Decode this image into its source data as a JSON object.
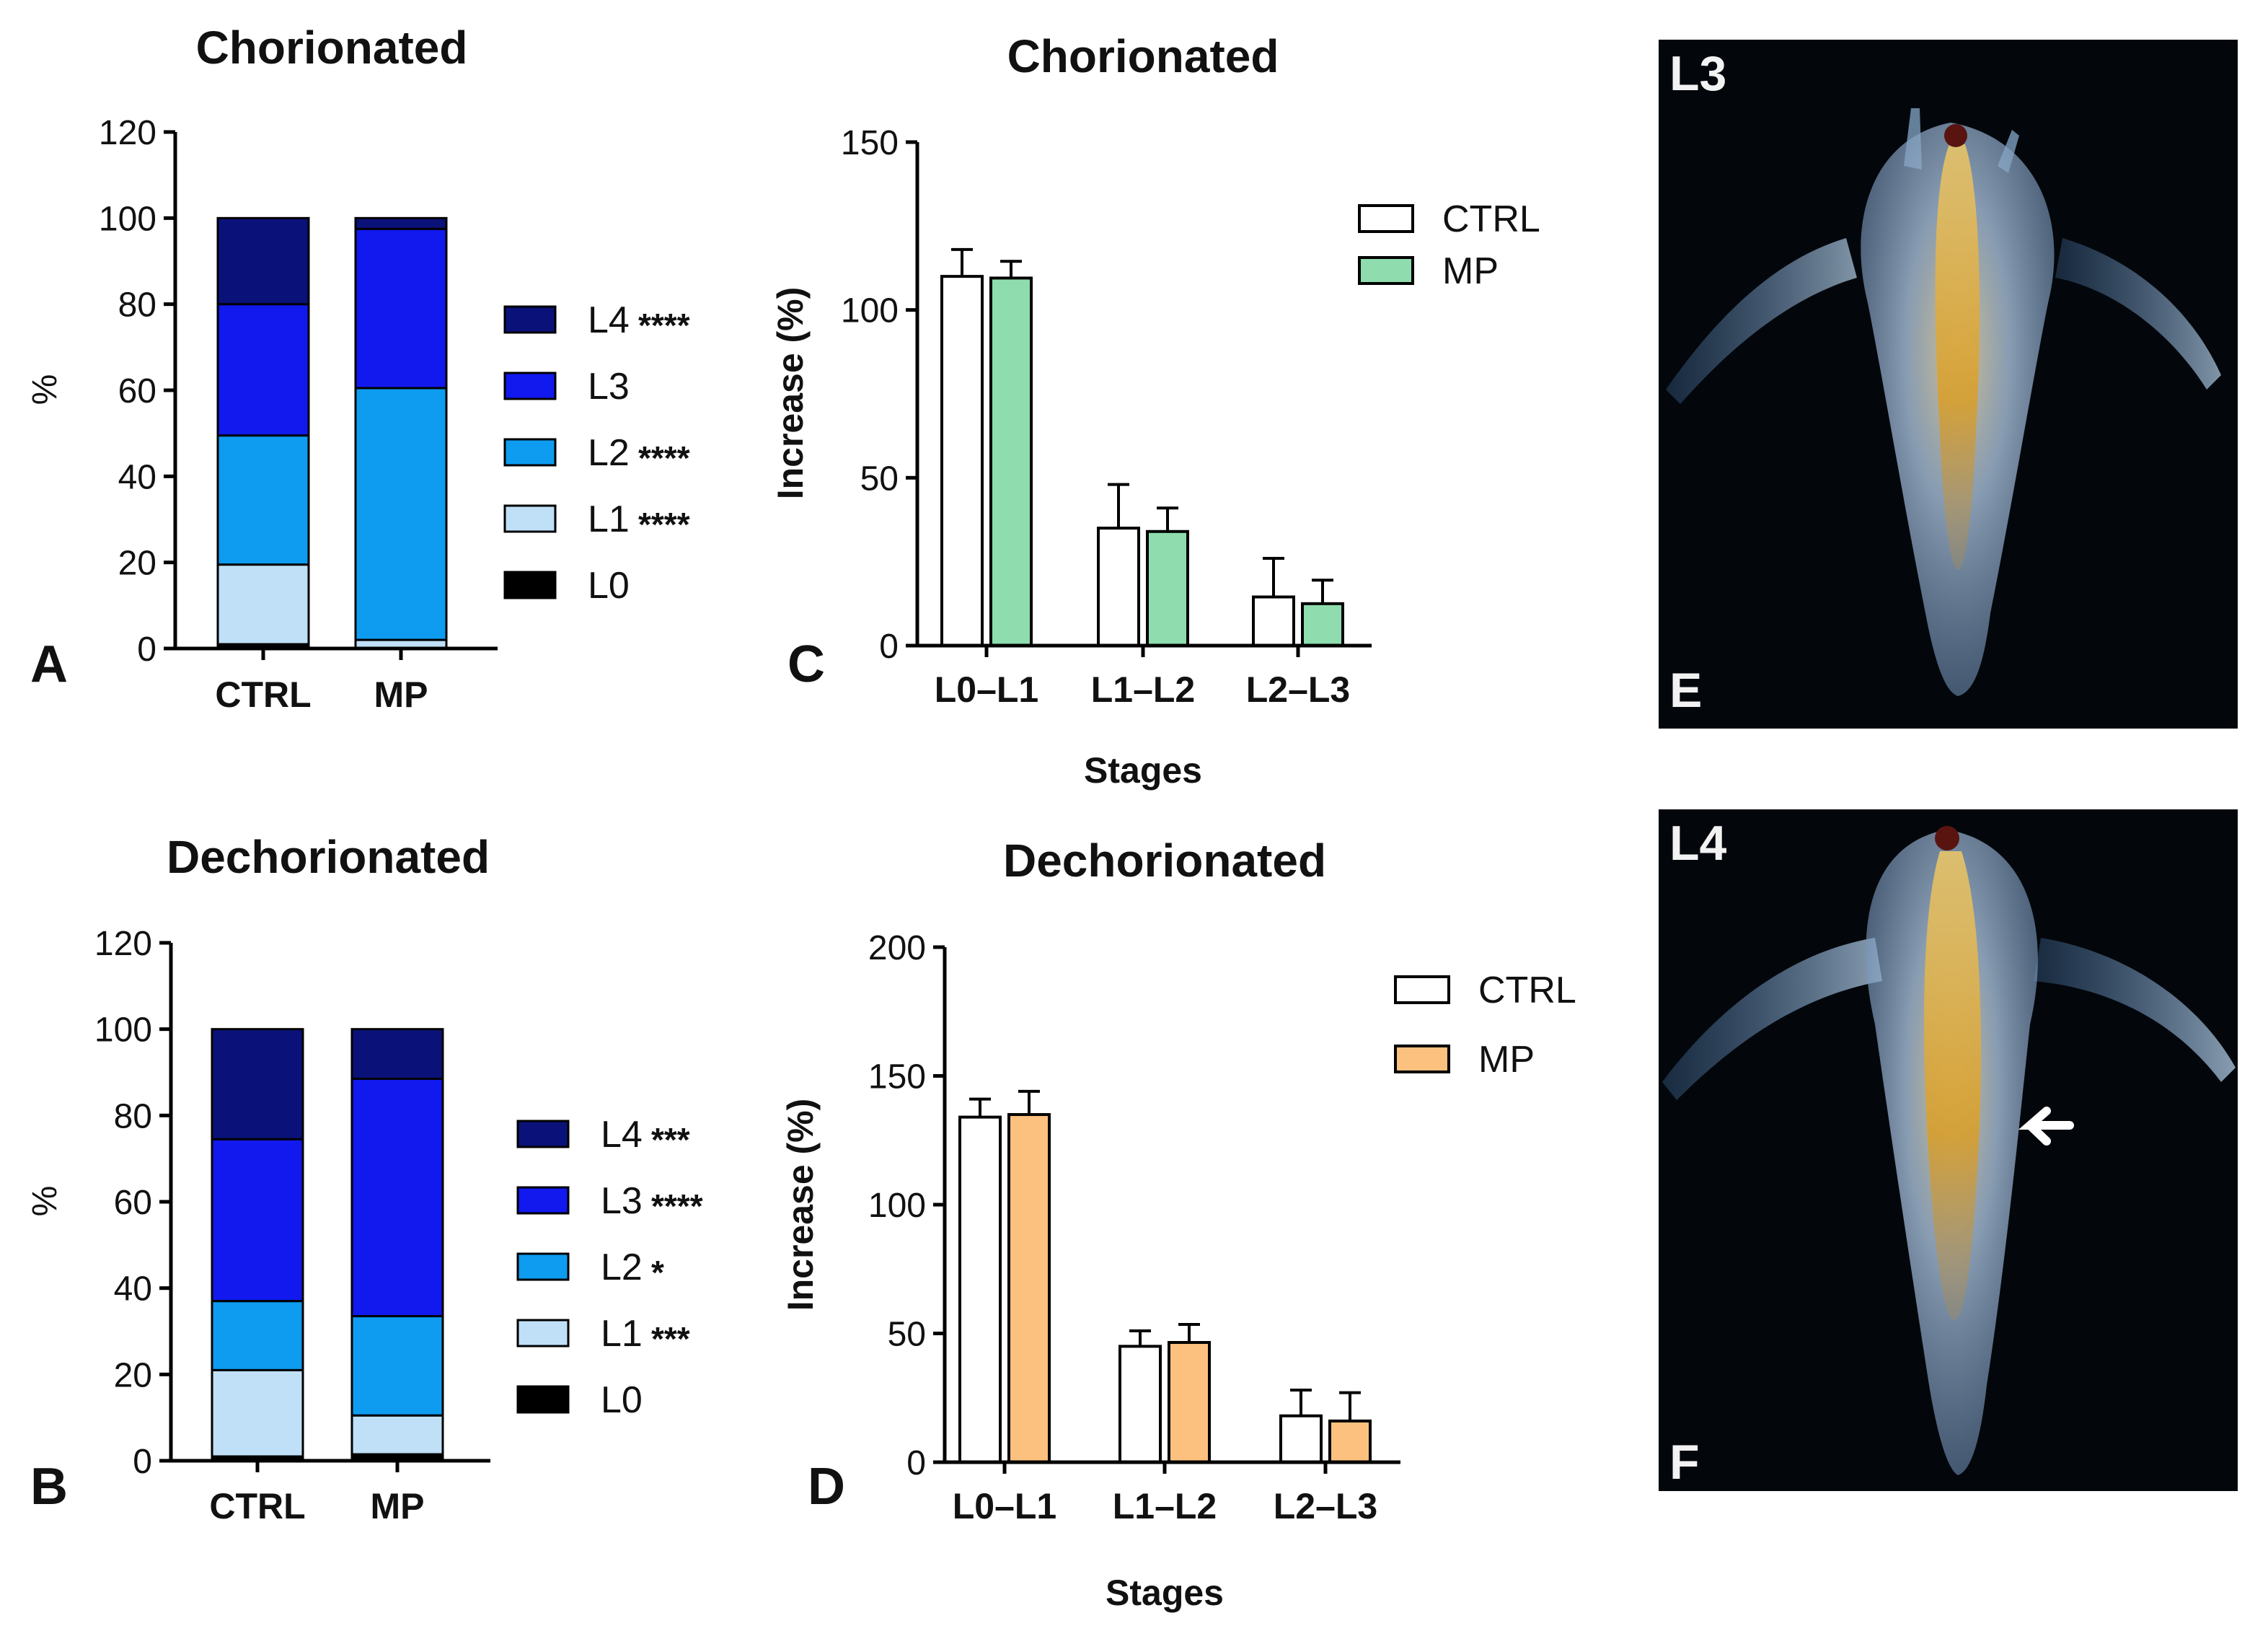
{
  "chart_data": [
    {
      "panel": "A",
      "type": "bar",
      "stacked": true,
      "title": "Chorionated",
      "xlabel": "",
      "ylabel": "%",
      "ylim": [
        0,
        120
      ],
      "yticks": [
        0,
        20,
        40,
        60,
        80,
        100,
        120
      ],
      "categories": [
        "CTRL",
        "MP"
      ],
      "series": [
        {
          "name": "L0",
          "color": "#000000",
          "values": [
            1,
            0
          ]
        },
        {
          "name": "L1",
          "color": "#bfe0f7",
          "values": [
            18.5,
            2
          ]
        },
        {
          "name": "L2",
          "color": "#0d9cf0",
          "values": [
            30,
            58.5
          ]
        },
        {
          "name": "L3",
          "color": "#1119ee",
          "values": [
            30.5,
            37
          ]
        },
        {
          "name": "L4",
          "color": "#0a1279",
          "values": [
            20,
            2.5
          ]
        }
      ],
      "legend": [
        {
          "label": "L4",
          "sig": "****"
        },
        {
          "label": "L3",
          "sig": ""
        },
        {
          "label": "L2",
          "sig": "****"
        },
        {
          "label": "L1",
          "sig": "****"
        },
        {
          "label": "L0",
          "sig": ""
        }
      ]
    },
    {
      "panel": "B",
      "type": "bar",
      "stacked": true,
      "title": "Dechorionated",
      "xlabel": "",
      "ylabel": "%",
      "ylim": [
        0,
        120
      ],
      "yticks": [
        0,
        20,
        40,
        60,
        80,
        100,
        120
      ],
      "categories": [
        "CTRL",
        "MP"
      ],
      "series": [
        {
          "name": "L0",
          "color": "#000000",
          "values": [
            1,
            1.5
          ]
        },
        {
          "name": "L1",
          "color": "#bfe0f7",
          "values": [
            20,
            9
          ]
        },
        {
          "name": "L2",
          "color": "#0d9cf0",
          "values": [
            16,
            23
          ]
        },
        {
          "name": "L3",
          "color": "#1119ee",
          "values": [
            37.5,
            55
          ]
        },
        {
          "name": "L4",
          "color": "#0a1279",
          "values": [
            25.5,
            11.5
          ]
        }
      ],
      "legend": [
        {
          "label": "L4",
          "sig": "***"
        },
        {
          "label": "L3",
          "sig": "****"
        },
        {
          "label": "L2",
          "sig": "*"
        },
        {
          "label": "L1",
          "sig": "***"
        },
        {
          "label": "L0",
          "sig": ""
        }
      ]
    },
    {
      "panel": "C",
      "type": "bar",
      "title": "Chorionated",
      "xlabel": "Stages",
      "ylabel": "Increase (%)",
      "ylim": [
        0,
        150
      ],
      "yticks": [
        0,
        50,
        100,
        150
      ],
      "categories": [
        "L0–L1",
        "L1–L2",
        "L2–L3"
      ],
      "series": [
        {
          "name": "CTRL",
          "color": "#ffffff",
          "values": [
            110,
            35,
            14.5
          ],
          "errors": [
            8,
            13,
            11.5
          ]
        },
        {
          "name": "MP",
          "color": "#8fdcae",
          "values": [
            109.5,
            34,
            12.5
          ],
          "errors": [
            5,
            7,
            7
          ]
        }
      ]
    },
    {
      "panel": "D",
      "type": "bar",
      "title": "Dechorionated",
      "xlabel": "Stages",
      "ylabel": "Increase (%)",
      "ylim": [
        0,
        200
      ],
      "yticks": [
        0,
        50,
        100,
        150,
        200
      ],
      "categories": [
        "L0–L1",
        "L1–L2",
        "L2–L3"
      ],
      "series": [
        {
          "name": "CTRL",
          "color": "#ffffff",
          "values": [
            134,
            45,
            18
          ],
          "errors": [
            7,
            6,
            10
          ]
        },
        {
          "name": "MP",
          "color": "#fcc17f",
          "values": [
            135,
            46.5,
            16
          ],
          "errors": [
            9,
            7,
            11
          ]
        }
      ]
    }
  ],
  "photos": [
    {
      "panel": "E",
      "stage_label": "L3",
      "panel_letter": "E"
    },
    {
      "panel": "F",
      "stage_label": "L4",
      "panel_letter": "F"
    }
  ]
}
